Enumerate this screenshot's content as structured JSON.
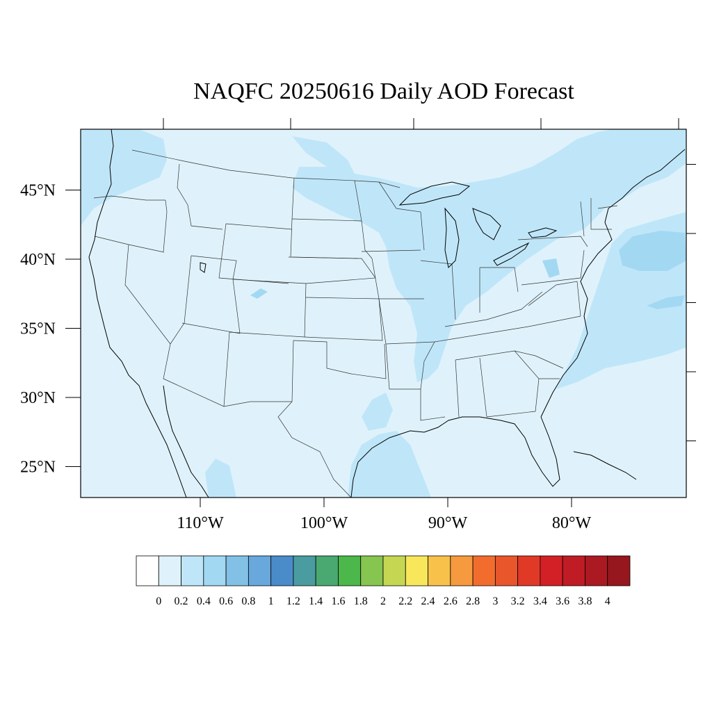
{
  "title": "NAQFC 20250616 Daily AOD Forecast",
  "colors": {
    "land_base": "#dff2fb",
    "band_low": "#bfe6f8",
    "band_mid": "#a3d8f3",
    "state_line": "#333333",
    "coast_line": "#000000"
  },
  "map": {
    "lon_range": [
      -119,
      -70
    ],
    "lat_range": [
      22.5,
      49.5
    ],
    "lat_ticks": [
      {
        "value": 45,
        "label": "45°N"
      },
      {
        "value": 40,
        "label": "40°N"
      },
      {
        "value": 35,
        "label": "35°N"
      },
      {
        "value": 30,
        "label": "30°N"
      },
      {
        "value": 25,
        "label": "25°N"
      }
    ],
    "lon_ticks": [
      {
        "value": -110,
        "label": "110°W"
      },
      {
        "value": -100,
        "label": "100°W"
      },
      {
        "value": -90,
        "label": "90°W"
      },
      {
        "value": -80,
        "label": "80°W"
      }
    ]
  },
  "colorbar": {
    "colors": [
      "#ffffff",
      "#dff2fb",
      "#bfe6f8",
      "#a3d8f3",
      "#82c0e6",
      "#68a8dc",
      "#4a8bc9",
      "#4a9ca0",
      "#4aa871",
      "#4cb74a",
      "#86c550",
      "#c5d653",
      "#f8e75a",
      "#f8c24a",
      "#f59a3e",
      "#f26d2d",
      "#e9562c",
      "#e03a27",
      "#d32027",
      "#bf1c26",
      "#ab1a22",
      "#96171e"
    ],
    "labels": [
      "0",
      "0.2",
      "0.4",
      "0.6",
      "0.8",
      "1",
      "1.2",
      "1.4",
      "1.6",
      "1.8",
      "2",
      "2.2",
      "2.4",
      "2.6",
      "2.8",
      "3",
      "3.2",
      "3.4",
      "3.6",
      "3.8",
      "4"
    ]
  }
}
